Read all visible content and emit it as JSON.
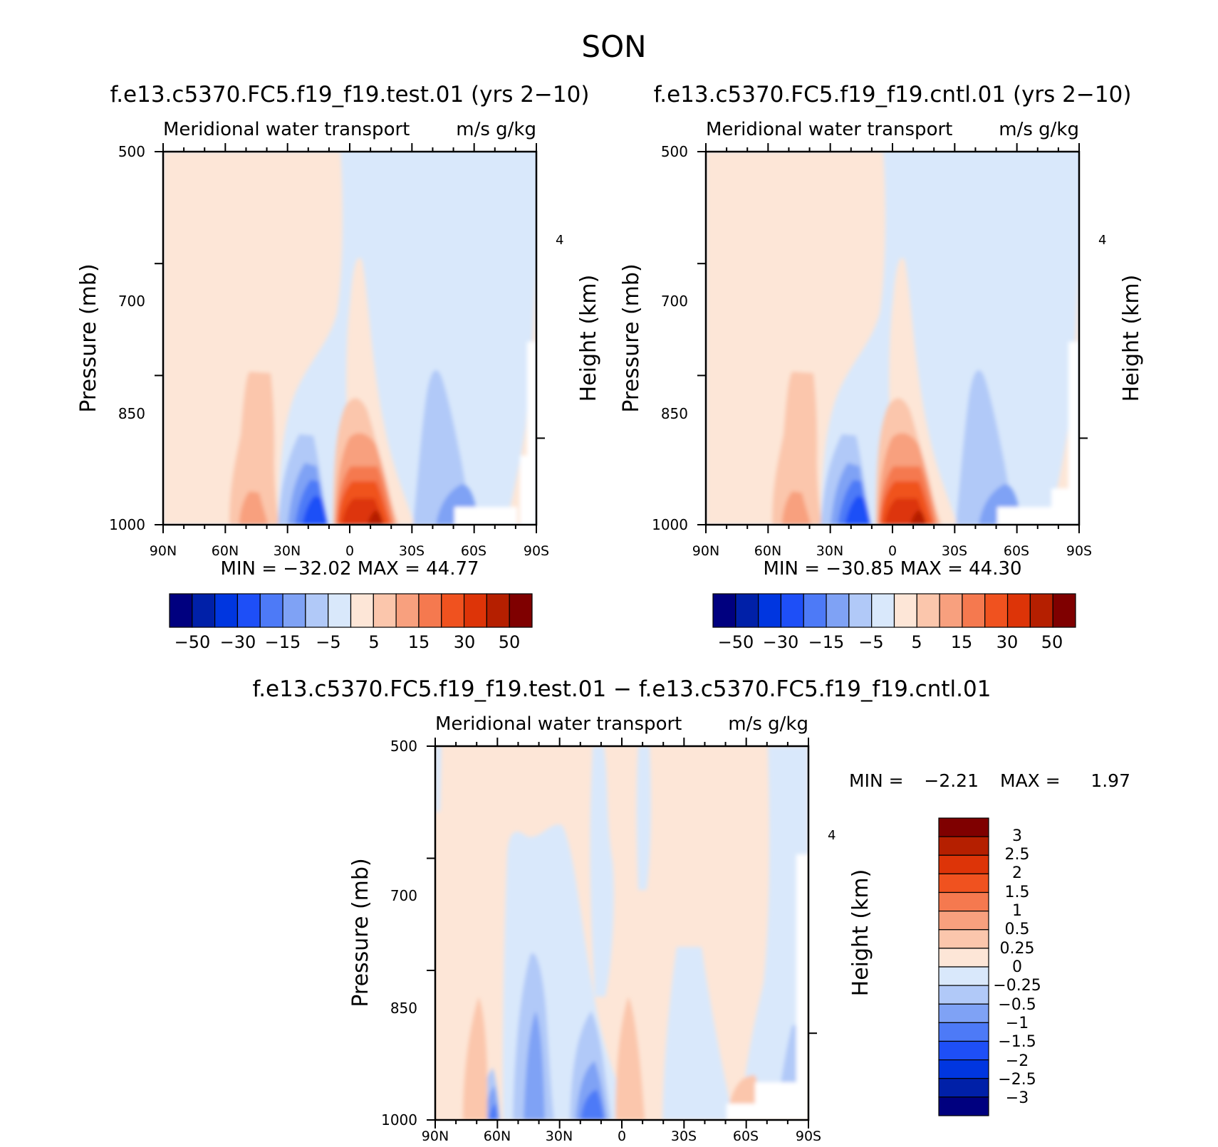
{
  "figure_title": "SON",
  "panels": [
    {
      "id": "test",
      "title": "f.e13.c5370.FC5.f19_f19.test.01 (yrs 2−10)",
      "subtitle_left": "Meridional water transport",
      "subtitle_right": "m/s g/kg",
      "ylabel": "Pressure (mb)",
      "ylabel_right": "Height (km)",
      "min_max": "MIN = −32.02   MAX =   44.77",
      "colorbar_labels": [
        "−50",
        "−30",
        "−15",
        "−5",
        "5",
        "15",
        "30",
        "50"
      ]
    },
    {
      "id": "cntl",
      "title": "f.e13.c5370.FC5.f19_f19.cntl.01 (yrs 2−10)",
      "subtitle_left": "Meridional water transport",
      "subtitle_right": "m/s g/kg",
      "ylabel": "Pressure (mb)",
      "ylabel_right": "Height (km)",
      "min_max": "MIN = −30.85   MAX =   44.30",
      "colorbar_labels": [
        "−50",
        "−30",
        "−15",
        "−5",
        "5",
        "15",
        "30",
        "50"
      ]
    },
    {
      "id": "diff",
      "title": "f.e13.c5370.FC5.f19_f19.test.01 − f.e13.c5370.FC5.f19_f19.cntl.01",
      "subtitle_left": "Meridional water transport",
      "subtitle_right": "m/s g/kg",
      "ylabel": "Pressure (mb)",
      "ylabel_right": "Height (km)",
      "min_label": "MIN =",
      "min_value": "−2.21",
      "max_label": "MAX =",
      "max_value": "1.97",
      "colorbar_labels": [
        "3",
        "2.5",
        "2",
        "1.5",
        "1",
        "0.5",
        "0.25",
        "0",
        "−0.25",
        "−0.5",
        "−1",
        "−1.5",
        "−2",
        "−2.5",
        "−3"
      ]
    }
  ],
  "palette": [
    "#00007f",
    "#0020a8",
    "#0036e0",
    "#1e4ff7",
    "#4d7af7",
    "#7fa2f5",
    "#b1c9f8",
    "#d9e8fb",
    "#fde6d7",
    "#fbc6ac",
    "#f8a07e",
    "#f5794f",
    "#f0521f",
    "#dd3408",
    "#b51f00",
    "#7f0000"
  ],
  "chart_data": {
    "type": "contour",
    "x_ticks": [
      "90N",
      "60N",
      "30N",
      "0",
      "30S",
      "60S",
      "90S"
    ],
    "xlim": [
      90,
      -90
    ],
    "y_ticks": [
      500,
      700,
      850,
      1000
    ],
    "ylim": [
      1000,
      500
    ],
    "right_axis_ticks": [
      "4"
    ],
    "height_km_ticks": [
      4
    ],
    "field_levels": [
      -50,
      -40,
      -30,
      -20,
      -15,
      -10,
      -5,
      0,
      5,
      10,
      15,
      20,
      30,
      40,
      50
    ],
    "diff_levels": [
      -3,
      -2.5,
      -2,
      -1.5,
      -1,
      -0.5,
      -0.25,
      0,
      0.25,
      0.5,
      1,
      1.5,
      2,
      2.5,
      3
    ]
  }
}
